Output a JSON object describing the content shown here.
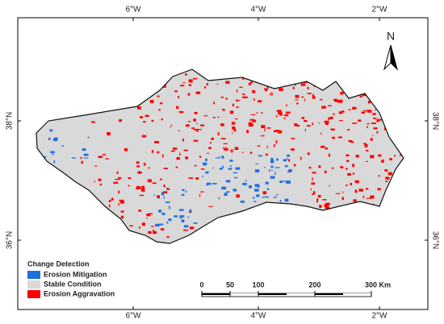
{
  "graticule": {
    "top": [
      "6°W",
      "4°W",
      "2°W"
    ],
    "bottom": [
      "6°W",
      "4°W",
      "2°W"
    ],
    "left": [
      "38°N",
      "36°N"
    ],
    "right": [
      "38°N",
      "36°N"
    ]
  },
  "north_arrow": "N",
  "legend": {
    "title": "Change Detection",
    "items": [
      {
        "label": "Erosion Mitigation",
        "color": "#1f6fe0"
      },
      {
        "label": "Stable Condition",
        "color": "#d9d9d9"
      },
      {
        "label": "Erosion Aggravation",
        "color": "#ff0000"
      }
    ]
  },
  "scale_bar": {
    "ticks": [
      "0",
      "50",
      "100",
      "200",
      "300 Km"
    ]
  }
}
